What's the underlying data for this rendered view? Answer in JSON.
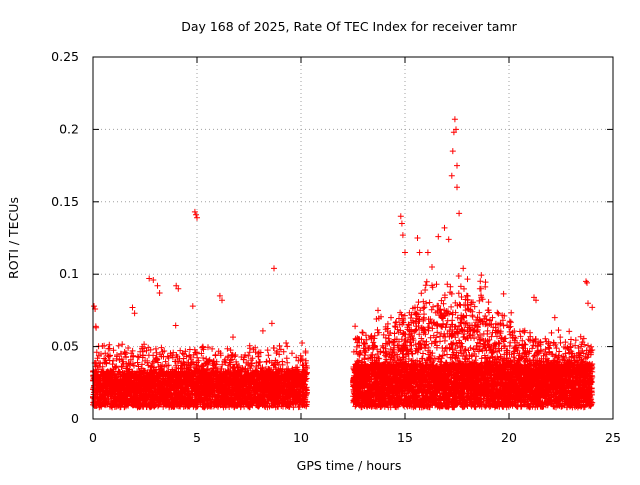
{
  "chart_data": {
    "type": "scatter",
    "title": "Day 168 of 2025, Rate Of TEC Index for receiver tamr",
    "xlabel": "GPS time / hours",
    "ylabel": "ROTI / TECUs",
    "xlim": [
      0,
      25
    ],
    "ylim": [
      0,
      0.25
    ],
    "xticks": [
      "0",
      "5",
      "10",
      "15",
      "20",
      "25"
    ],
    "yticks": [
      "0",
      "0.05",
      "0.1",
      "0.15",
      "0.2",
      "0.25"
    ],
    "grid": true,
    "marker": "+",
    "color": "#ff0000",
    "data_gap_hours": [
      10.3,
      12.5
    ],
    "series": [
      {
        "values_summary": "dense band of ROTI values mostly 0.005–0.05 TECU/min across 0–10.3 h and 12.5–24 h; gap 10.3–12.5 h",
        "points": [
          [
            0.05,
            0.078
          ],
          [
            0.1,
            0.076
          ],
          [
            0.15,
            0.063
          ],
          [
            1.9,
            0.077
          ],
          [
            2.0,
            0.073
          ],
          [
            2.7,
            0.097
          ],
          [
            2.9,
            0.096
          ],
          [
            3.1,
            0.092
          ],
          [
            3.2,
            0.087
          ],
          [
            4.0,
            0.092
          ],
          [
            4.1,
            0.09
          ],
          [
            4.8,
            0.078
          ],
          [
            4.9,
            0.143
          ],
          [
            4.95,
            0.141
          ],
          [
            5.0,
            0.139
          ],
          [
            6.1,
            0.085
          ],
          [
            6.2,
            0.082
          ],
          [
            8.7,
            0.104
          ],
          [
            8.6,
            0.066
          ],
          [
            12.6,
            0.064
          ],
          [
            13.7,
            0.075
          ],
          [
            14.8,
            0.14
          ],
          [
            14.85,
            0.135
          ],
          [
            14.9,
            0.127
          ],
          [
            15.0,
            0.115
          ],
          [
            15.6,
            0.125
          ],
          [
            15.7,
            0.115
          ],
          [
            16.1,
            0.115
          ],
          [
            16.3,
            0.105
          ],
          [
            16.6,
            0.126
          ],
          [
            16.9,
            0.132
          ],
          [
            17.3,
            0.185
          ],
          [
            17.35,
            0.198
          ],
          [
            17.4,
            0.207
          ],
          [
            17.45,
            0.2
          ],
          [
            17.25,
            0.168
          ],
          [
            17.5,
            0.175
          ],
          [
            17.5,
            0.16
          ],
          [
            17.6,
            0.142
          ],
          [
            17.1,
            0.124
          ],
          [
            17.8,
            0.104
          ],
          [
            18.6,
            0.09
          ],
          [
            21.2,
            0.084
          ],
          [
            21.3,
            0.082
          ],
          [
            22.2,
            0.07
          ],
          [
            23.7,
            0.095
          ],
          [
            23.75,
            0.094
          ],
          [
            23.8,
            0.08
          ]
        ]
      }
    ]
  }
}
